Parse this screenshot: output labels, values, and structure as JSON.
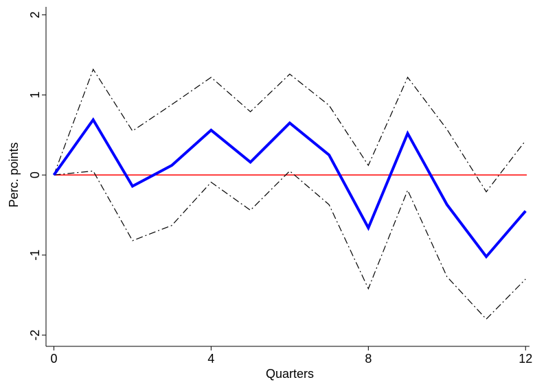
{
  "chart_data": {
    "type": "line",
    "x_label": "Quarters",
    "y_label": "Perc. points",
    "x": [
      0,
      1,
      2,
      3,
      4,
      5,
      6,
      7,
      8,
      9,
      10,
      11,
      12
    ],
    "series": [
      {
        "color": "#000000",
        "dash": "dashdot",
        "width": 1.2,
        "values": [
          0,
          1.32,
          0.55,
          0.88,
          1.22,
          0.79,
          1.26,
          0.87,
          0.12,
          1.22,
          0.57,
          -0.21,
          0.43
        ]
      },
      {
        "color": "#000000",
        "dash": "dashdot",
        "width": 1.2,
        "values": [
          0,
          0.05,
          -0.82,
          -0.63,
          -0.09,
          -0.44,
          0.05,
          -0.37,
          -1.42,
          -0.19,
          -1.27,
          -1.8,
          -1.3
        ]
      },
      {
        "color": "#0000ff",
        "dash": "solid",
        "width": 4,
        "values": [
          0,
          0.69,
          -0.14,
          0.12,
          0.56,
          0.16,
          0.65,
          0.25,
          -0.66,
          0.52,
          -0.37,
          -1.02,
          -0.45
        ]
      }
    ],
    "hline": {
      "value": 0,
      "color": "#ff0000"
    },
    "xlim": [
      -0.2,
      12.1
    ],
    "ylim": [
      -2.14,
      2.1
    ],
    "xticks": [
      0,
      4,
      8,
      12
    ],
    "yticks": [
      -2,
      -1,
      0,
      1,
      2
    ]
  }
}
